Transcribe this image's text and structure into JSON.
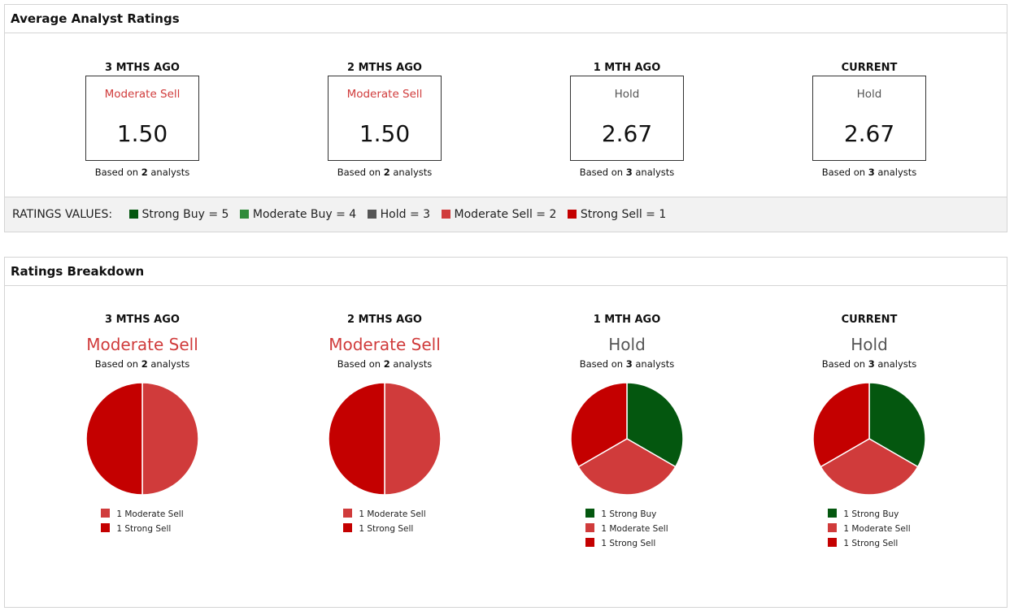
{
  "colors": {
    "strong_buy": "#04570f",
    "moderate_buy": "#2f8b3a",
    "hold": "#555555",
    "moderate_sell": "#d03b3b",
    "strong_sell": "#c40000",
    "hold_text": "#555555",
    "sell_text": "#d03b3b"
  },
  "average_ratings": {
    "title": "Average Analyst Ratings",
    "columns": [
      {
        "period": "3 MTHS AGO",
        "label": "Moderate Sell",
        "value": "1.50",
        "based_prefix": "Based on ",
        "count": "2",
        "based_suffix": " analysts"
      },
      {
        "period": "2 MTHS AGO",
        "label": "Moderate Sell",
        "value": "1.50",
        "based_prefix": "Based on ",
        "count": "2",
        "based_suffix": " analysts"
      },
      {
        "period": "1 MTH AGO",
        "label": "Hold",
        "value": "2.67",
        "based_prefix": "Based on ",
        "count": "3",
        "based_suffix": " analysts"
      },
      {
        "period": "CURRENT",
        "label": "Hold",
        "value": "2.67",
        "based_prefix": "Based on ",
        "count": "3",
        "based_suffix": " analysts"
      }
    ],
    "legend": {
      "title": "RATINGS VALUES:",
      "items": [
        {
          "label": "Strong Buy = 5",
          "color": "#04570f"
        },
        {
          "label": "Moderate Buy = 4",
          "color": "#2f8b3a"
        },
        {
          "label": "Hold = 3",
          "color": "#555555"
        },
        {
          "label": "Moderate Sell = 2",
          "color": "#d03b3b"
        },
        {
          "label": "Strong Sell = 1",
          "color": "#c40000"
        }
      ]
    }
  },
  "breakdown": {
    "title": "Ratings Breakdown",
    "columns": [
      {
        "period": "3 MTHS AGO",
        "rating": "Moderate Sell",
        "based_prefix": "Based on ",
        "count": "2",
        "based_suffix": " analysts",
        "legend": [
          "1 Moderate Sell",
          "1 Strong Sell"
        ]
      },
      {
        "period": "2 MTHS AGO",
        "rating": "Moderate Sell",
        "based_prefix": "Based on ",
        "count": "2",
        "based_suffix": " analysts",
        "legend": [
          "1 Moderate Sell",
          "1 Strong Sell"
        ]
      },
      {
        "period": "1 MTH AGO",
        "rating": "Hold",
        "based_prefix": "Based on ",
        "count": "3",
        "based_suffix": " analysts",
        "legend": [
          "1 Strong Buy",
          "1 Moderate Sell",
          "1 Strong Sell"
        ]
      },
      {
        "period": "CURRENT",
        "rating": "Hold",
        "based_prefix": "Based on ",
        "count": "3",
        "based_suffix": " analysts",
        "legend": [
          "1 Strong Buy",
          "1 Moderate Sell",
          "1 Strong Sell"
        ]
      }
    ]
  },
  "chart_data": [
    {
      "type": "pie",
      "categories": [
        "Moderate Sell",
        "Strong Sell"
      ],
      "values": [
        1,
        1
      ],
      "colors": [
        "#d03b3b",
        "#c40000"
      ]
    },
    {
      "type": "pie",
      "categories": [
        "Moderate Sell",
        "Strong Sell"
      ],
      "values": [
        1,
        1
      ],
      "colors": [
        "#d03b3b",
        "#c40000"
      ]
    },
    {
      "type": "pie",
      "categories": [
        "Strong Buy",
        "Moderate Sell",
        "Strong Sell"
      ],
      "values": [
        1,
        1,
        1
      ],
      "colors": [
        "#04570f",
        "#d03b3b",
        "#c40000"
      ]
    },
    {
      "type": "pie",
      "categories": [
        "Strong Buy",
        "Moderate Sell",
        "Strong Sell"
      ],
      "values": [
        1,
        1,
        1
      ],
      "colors": [
        "#04570f",
        "#d03b3b",
        "#c40000"
      ]
    }
  ]
}
